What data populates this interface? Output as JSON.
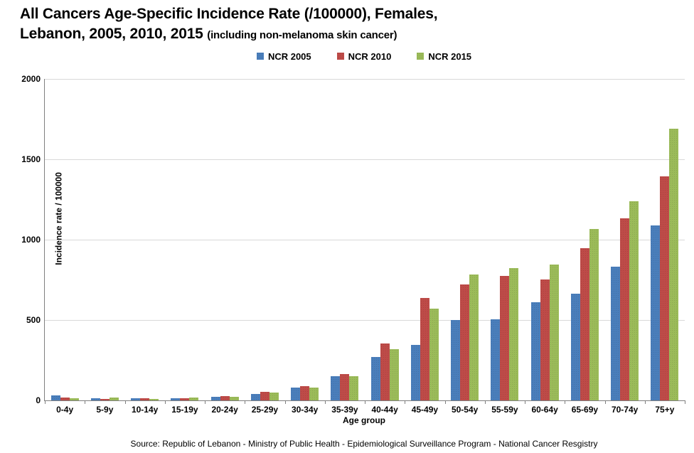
{
  "title": {
    "line1": "All Cancers Age-Specific Incidence Rate (/100000), Females,",
    "line2_main": "Lebanon, 2005, 2010, 2015 ",
    "line2_paren": "(including non-melanoma skin cancer)"
  },
  "axes": {
    "y_title": "Incidence rate / 100000",
    "x_title": "Age group"
  },
  "footer": "Source: Republic of Lebanon - Ministry of Public Health - Epidemiological Surveillance Program - National Cancer Resgistry",
  "colors": {
    "ncr2005": "#4A7EBB",
    "ncr2010": "#BE4B48",
    "ncr2015": "#9BBB59",
    "gridline": "#D9D9D9",
    "axis": "#7F7F7F"
  },
  "chart_data": {
    "type": "bar",
    "title": "All Cancers Age-Specific Incidence Rate (/100000), Females, Lebanon, 2005, 2010, 2015 (including non-melanoma skin cancer)",
    "categories": [
      "0-4y",
      "5-9y",
      "10-14y",
      "15-19y",
      "20-24y",
      "25-29y",
      "30-34y",
      "35-39y",
      "40-44y",
      "45-49y",
      "50-54y",
      "55-59y",
      "60-64y",
      "65-69y",
      "70-74y",
      "75+y"
    ],
    "series": [
      {
        "name": "NCR 2005",
        "color": "#4A7EBB",
        "values": [
          30,
          12,
          12,
          15,
          22,
          42,
          80,
          150,
          270,
          345,
          498,
          503,
          611,
          663,
          834,
          1089
        ]
      },
      {
        "name": "NCR 2010",
        "color": "#BE4B48",
        "values": [
          16,
          11,
          13,
          15,
          27,
          55,
          88,
          162,
          355,
          637,
          721,
          774,
          751,
          949,
          1134,
          1394
        ]
      },
      {
        "name": "NCR 2015",
        "color": "#9BBB59",
        "values": [
          15,
          17,
          11,
          19,
          21,
          48,
          80,
          152,
          320,
          573,
          783,
          822,
          845,
          1068,
          1239,
          1689
        ]
      }
    ],
    "xlabel": "Age group",
    "ylabel": "Incidence rate / 100000",
    "ylim": [
      0,
      2000
    ],
    "y_ticks": [
      0,
      500,
      1000,
      1500,
      2000
    ],
    "grid": true,
    "legend_position": "top-center"
  }
}
